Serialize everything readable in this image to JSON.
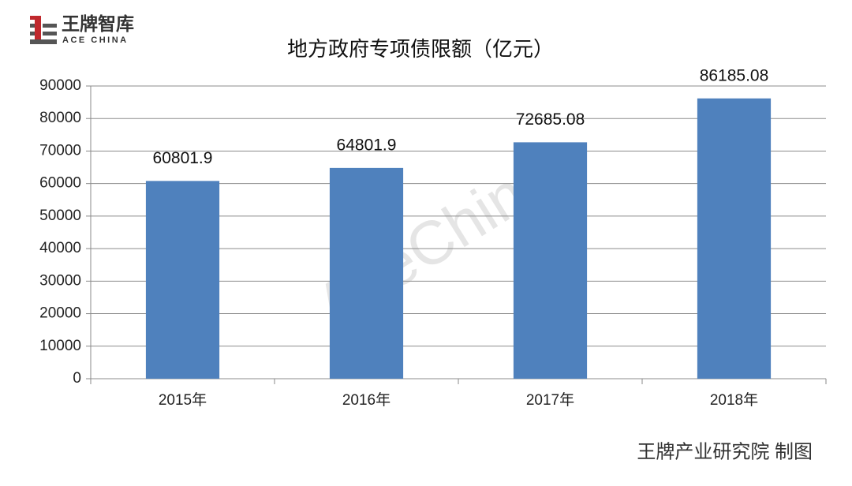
{
  "logo": {
    "name": "王牌智库",
    "subtitle": "ACE CHINA"
  },
  "watermark": "AceChina",
  "credit": "王牌产业研究院 制图",
  "chart_data": {
    "type": "bar",
    "title": "地方政府专项债限额（亿元）",
    "categories": [
      "2015年",
      "2016年",
      "2017年",
      "2018年"
    ],
    "values": [
      60801.9,
      64801.9,
      72685.08,
      86185.08
    ],
    "color": "#4f81bd",
    "ylim": [
      0,
      90000
    ],
    "yticks": [
      0,
      10000,
      20000,
      30000,
      40000,
      50000,
      60000,
      70000,
      80000,
      90000
    ],
    "grid": true
  }
}
